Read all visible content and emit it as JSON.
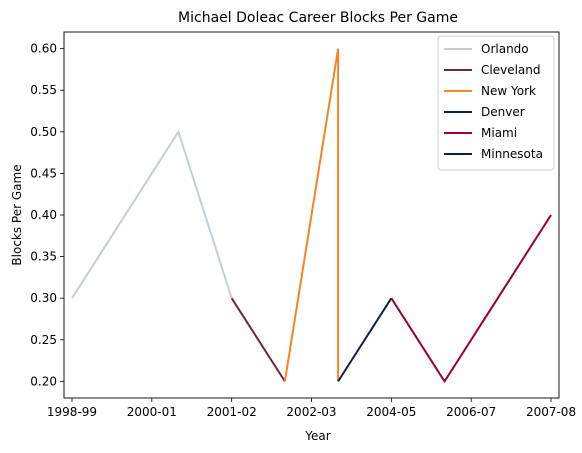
{
  "chart_data": {
    "type": "line",
    "title": "Michael Doleac Career Blocks Per Game",
    "xlabel": "Year",
    "ylabel": "Blocks Per Game",
    "x_ticks": [
      "1998-99",
      "2000-01",
      "2001-02",
      "2002-03",
      "2004-05",
      "2006-07",
      "2007-08"
    ],
    "y_ticks": [
      "0.20",
      "0.25",
      "0.30",
      "0.35",
      "0.40",
      "0.45",
      "0.50",
      "0.55",
      "0.60"
    ],
    "xlim": [
      -0.15,
      9.15
    ],
    "ylim": [
      0.18,
      0.62
    ],
    "grid": false,
    "legend_position": "upper right",
    "series": [
      {
        "name": "Orlando",
        "color": "#c4ced4",
        "points": [
          [
            0,
            0.3
          ],
          [
            2,
            0.5
          ],
          [
            3,
            0.3
          ]
        ]
      },
      {
        "name": "Cleveland",
        "color": "#6f263d",
        "points": [
          [
            3,
            0.3
          ],
          [
            4,
            0.2
          ]
        ]
      },
      {
        "name": "New York",
        "color": "#f58426",
        "points": [
          [
            4,
            0.2
          ],
          [
            5,
            0.6
          ],
          [
            5,
            0.2
          ]
        ]
      },
      {
        "name": "Denver",
        "color": "#0e2240",
        "points": [
          [
            5,
            0.2
          ],
          [
            6,
            0.3
          ]
        ]
      },
      {
        "name": "Miami",
        "color": "#98002e",
        "points": [
          [
            6,
            0.3
          ],
          [
            7,
            0.2
          ],
          [
            8,
            0.3
          ],
          [
            9,
            0.4
          ]
        ]
      },
      {
        "name": "Minnesota",
        "color": "#0c2340",
        "points": []
      }
    ],
    "x_tick_positions": [
      0,
      1.5,
      3,
      4.5,
      6,
      7.5,
      9
    ]
  }
}
